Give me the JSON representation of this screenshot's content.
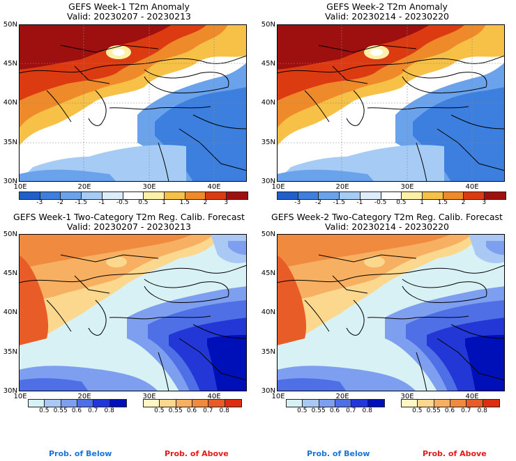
{
  "panels": [
    {
      "title": "GEFS Week-1 T2m Anomaly",
      "valid": "Valid: 20230207 - 20230213"
    },
    {
      "title": "GEFS Week-2 T2m Anomaly",
      "valid": "Valid: 20230214 - 20230220"
    },
    {
      "title": "GEFS Week-1 Two-Category T2m Reg. Calib. Forecast",
      "valid": "Valid: 20230207 - 20230213"
    },
    {
      "title": "GEFS Week-2 Two-Category T2m Reg. Calib. Forecast",
      "valid": "Valid: 20230214 - 20230220"
    }
  ],
  "axes": {
    "lat_labels": [
      "50N",
      "45N",
      "40N",
      "35N",
      "30N"
    ],
    "lon_labels": [
      "10E",
      "20E",
      "30E",
      "40E"
    ]
  },
  "anomaly_colorbar": {
    "labels": [
      "-3",
      "-2",
      "-1.5",
      "-1",
      "-0.5",
      "0.5",
      "1",
      "1.5",
      "2",
      "3"
    ],
    "colors": [
      "#1f5fc9",
      "#3d7fdf",
      "#6aa3ec",
      "#a6ccf5",
      "#dcecfb",
      "#ffffff",
      "#fff0a8",
      "#f6c146",
      "#ef8a2a",
      "#dc3b12",
      "#9e0f0f"
    ]
  },
  "prob_below_colorbar": {
    "labels": [
      "0.5",
      "0.55",
      "0.6",
      "0.7",
      "0.8"
    ],
    "colors": [
      "#d7f1f4",
      "#a9c8f4",
      "#7e9ff0",
      "#4e6fe6",
      "#2237d6",
      "#0010b8"
    ]
  },
  "prob_above_colorbar": {
    "labels": [
      "0.5",
      "0.55",
      "0.6",
      "0.7",
      "0.8"
    ],
    "colors": [
      "#fff6c6",
      "#fbd88e",
      "#f7b061",
      "#f08a3f",
      "#e85c28",
      "#dc2f12"
    ]
  },
  "footers": {
    "below": "Prob. of Below",
    "above": "Prob. of Above"
  },
  "colors": {
    "below_text": "#1a74d8",
    "above_text": "#e41a1a"
  }
}
